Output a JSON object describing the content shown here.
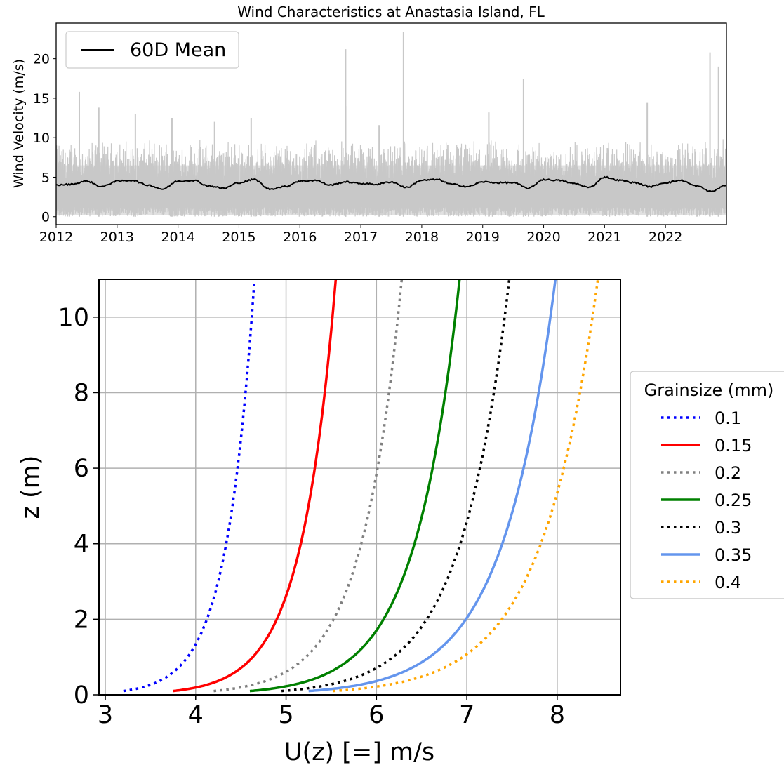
{
  "chart_data": [
    {
      "type": "line",
      "title": "Wind Characteristics at Anastasia Island, FL",
      "xlabel": "",
      "ylabel": "Wind Velocity (m/s)",
      "xlim": [
        2012,
        2023
      ],
      "ylim": [
        -1,
        24.5
      ],
      "xticks": [
        "2012",
        "2013",
        "2014",
        "2015",
        "2016",
        "2017",
        "2018",
        "2019",
        "2020",
        "2021",
        "2022"
      ],
      "yticks": [
        "0",
        "5",
        "10",
        "15",
        "20"
      ],
      "grid": false,
      "legend": {
        "position": "top-left",
        "entries": [
          "60D Mean"
        ]
      },
      "raw_series": {
        "color": "#c8c8c8",
        "typical_range": [
          0,
          10
        ],
        "spikes": [
          [
            2012.38,
            15.8
          ],
          [
            2012.7,
            13.8
          ],
          [
            2013.3,
            13.0
          ],
          [
            2013.9,
            12.5
          ],
          [
            2014.6,
            12.0
          ],
          [
            2015.2,
            12.5
          ],
          [
            2016.75,
            21.2
          ],
          [
            2016.75,
            14.0
          ],
          [
            2017.3,
            11.6
          ],
          [
            2017.7,
            23.4
          ],
          [
            2019.1,
            13.2
          ],
          [
            2019.67,
            17.4
          ],
          [
            2021.7,
            14.4
          ],
          [
            2022.73,
            20.8
          ],
          [
            2022.87,
            19.0
          ]
        ]
      },
      "series": [
        {
          "name": "60D Mean",
          "color": "#000000",
          "x": [
            2012.0,
            2012.25,
            2012.5,
            2012.75,
            2013.0,
            2013.25,
            2013.5,
            2013.75,
            2014.0,
            2014.25,
            2014.5,
            2014.75,
            2015.0,
            2015.25,
            2015.5,
            2015.75,
            2016.0,
            2016.25,
            2016.5,
            2016.75,
            2017.0,
            2017.25,
            2017.5,
            2017.75,
            2018.0,
            2018.25,
            2018.5,
            2018.75,
            2019.0,
            2019.25,
            2019.5,
            2019.75,
            2020.0,
            2020.25,
            2020.5,
            2020.75,
            2021.0,
            2021.25,
            2021.5,
            2021.75,
            2022.0,
            2022.25,
            2022.5,
            2022.75,
            2023.0
          ],
          "y": [
            4.0,
            4.1,
            4.5,
            3.8,
            4.5,
            4.6,
            4.0,
            3.5,
            4.5,
            4.6,
            3.9,
            3.6,
            4.3,
            4.7,
            3.5,
            3.8,
            4.5,
            4.6,
            4.0,
            4.4,
            4.2,
            4.1,
            4.4,
            3.7,
            4.6,
            4.7,
            4.1,
            3.8,
            4.4,
            4.3,
            4.3,
            3.6,
            4.7,
            4.6,
            4.2,
            3.7,
            5.0,
            4.6,
            4.3,
            3.8,
            4.3,
            4.6,
            3.9,
            3.2,
            4.0
          ]
        }
      ]
    },
    {
      "type": "line",
      "title": "",
      "xlabel": "U(z) [=] m/s",
      "ylabel": "z (m)",
      "xlim": [
        2.93,
        8.7
      ],
      "ylim": [
        0,
        11
      ],
      "xticks": [
        "3",
        "4",
        "5",
        "6",
        "7",
        "8"
      ],
      "yticks": [
        "0",
        "2",
        "4",
        "6",
        "8",
        "10"
      ],
      "grid": true,
      "legend": {
        "position": "outside-right",
        "title": "Grainsize (mm)"
      },
      "series": [
        {
          "name": "0.1",
          "color": "#0000ff",
          "style": "dotted",
          "u_at_z0": 3.2,
          "u_at_z11": 4.65
        },
        {
          "name": "0.15",
          "color": "#ff0000",
          "style": "solid",
          "u_at_z0": 3.75,
          "u_at_z11": 5.55
        },
        {
          "name": "0.2",
          "color": "#808080",
          "style": "dotted",
          "u_at_z0": 4.2,
          "u_at_z11": 6.28
        },
        {
          "name": "0.25",
          "color": "#008000",
          "style": "solid",
          "u_at_z0": 4.6,
          "u_at_z11": 6.92
        },
        {
          "name": "0.3",
          "color": "#000000",
          "style": "dotted",
          "u_at_z0": 4.95,
          "u_at_z11": 7.47
        },
        {
          "name": "0.35",
          "color": "#6495ed",
          "style": "solid",
          "u_at_z0": 5.25,
          "u_at_z11": 7.98
        },
        {
          "name": "0.4",
          "color": "#ffa500",
          "style": "dotted",
          "u_at_z0": 5.52,
          "u_at_z11": 8.45
        }
      ]
    }
  ]
}
